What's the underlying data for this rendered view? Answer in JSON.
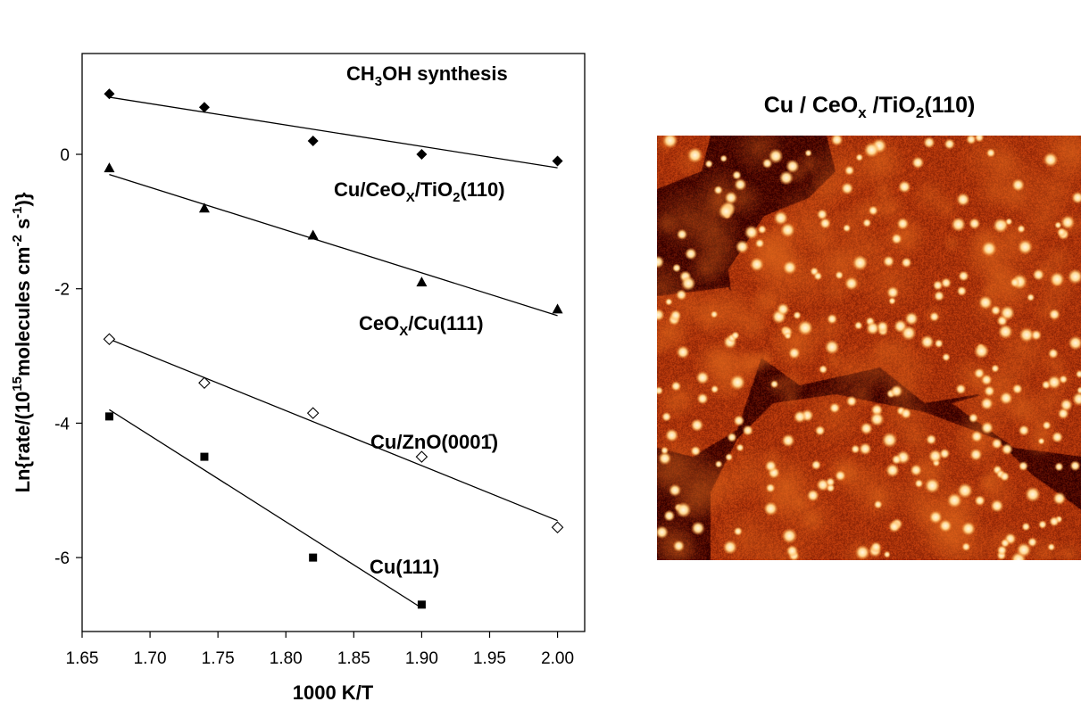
{
  "chart_data": {
    "type": "scatter",
    "title": "CH3OH synthesis",
    "xlabel": "1000 K/T",
    "ylabel": "Ln{rate/(10^15 molecules cm^-2 s^-1)}",
    "xlim": [
      1.65,
      2.02
    ],
    "ylim": [
      -7.1,
      1.5
    ],
    "x_ticks": [
      "1.65",
      "1.70",
      "1.75",
      "1.80",
      "1.85",
      "1.90",
      "1.95",
      "2.00"
    ],
    "y_ticks": [
      "-6",
      "-4",
      "-2",
      "0"
    ],
    "grid": false,
    "legend": "none (series labeled inline)",
    "series": [
      {
        "name": "Cu/CeOX/TiO2(110)",
        "marker": "filled-diamond",
        "x": [
          1.67,
          1.74,
          1.82,
          1.9,
          2.0
        ],
        "y": [
          0.9,
          0.7,
          0.2,
          0.0,
          -0.1
        ],
        "fit": [
          [
            1.67,
            0.85
          ],
          [
            2.0,
            -0.2
          ]
        ]
      },
      {
        "name": "CeOX/Cu(111)",
        "marker": "filled-triangle",
        "x": [
          1.67,
          1.74,
          1.82,
          1.9,
          2.0
        ],
        "y": [
          -0.2,
          -0.8,
          -1.2,
          -1.9,
          -2.3
        ],
        "fit": [
          [
            1.67,
            -0.3
          ],
          [
            2.0,
            -2.4
          ]
        ]
      },
      {
        "name": "Cu/ZnO(0001̄)",
        "marker": "open-diamond",
        "x": [
          1.67,
          1.74,
          1.82,
          1.9,
          2.0
        ],
        "y": [
          -2.75,
          -3.4,
          -3.85,
          -4.5,
          -5.55
        ],
        "fit": [
          [
            1.67,
            -2.75
          ],
          [
            2.0,
            -5.45
          ]
        ]
      },
      {
        "name": "Cu(111)",
        "marker": "filled-square",
        "x": [
          1.67,
          1.74,
          1.82,
          1.9
        ],
        "y": [
          -3.9,
          -4.5,
          -6.0,
          -6.7
        ],
        "fit": [
          [
            1.67,
            -3.8
          ],
          [
            1.9,
            -6.75
          ]
        ]
      }
    ]
  },
  "image_panel": {
    "title_prefix": "Cu / CeO",
    "title_sub1": "x",
    "title_mid": " /TiO",
    "title_sub2": "2",
    "title_suffix": "(110)",
    "description_colors": {
      "background": "#5a0800",
      "terrace": "#c24a10",
      "particle": "#ffe6b0"
    }
  },
  "labels": {
    "title_a": "CH",
    "title_sub": "3",
    "title_b": "OH synthesis",
    "s1_a": "Cu/CeO",
    "s1_sub1": "X",
    "s1_b": "/TiO",
    "s1_sub2": "2",
    "s1_c": "(110)",
    "s2_a": "CeO",
    "s2_sub": "X",
    "s2_b": "/Cu(111)",
    "s3": "Cu/ZnO(0001̄)",
    "s4": "Cu(111)",
    "ylabel_a": "Ln{rate/(10",
    "ylabel_sup1": "15",
    "ylabel_b": "molecules cm",
    "ylabel_sup2": "-2",
    "ylabel_c": " s",
    "ylabel_sup3": "-1",
    "ylabel_d": ")}"
  }
}
